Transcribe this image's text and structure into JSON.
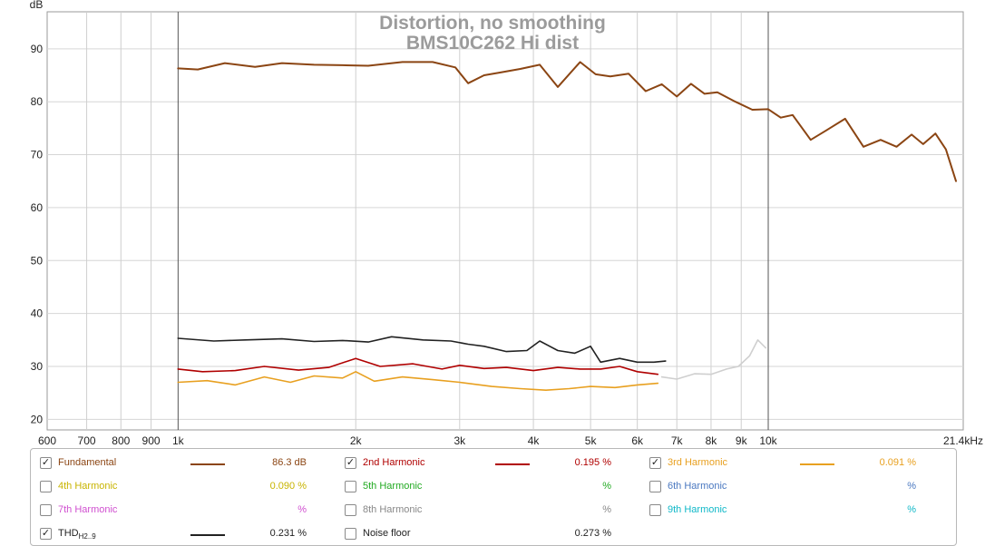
{
  "chart_data": {
    "type": "line",
    "title": "Distortion, no smoothing",
    "subtitle": "BMS10C262 Hi dist",
    "ylabel": "dB",
    "xscale": "log",
    "xlim": [
      600,
      21400
    ],
    "ylim": [
      18,
      97
    ],
    "x_ticks": [
      {
        "v": 600,
        "label": "600"
      },
      {
        "v": 700,
        "label": "700"
      },
      {
        "v": 800,
        "label": "800"
      },
      {
        "v": 900,
        "label": "900"
      },
      {
        "v": 1000,
        "label": "1k"
      },
      {
        "v": 2000,
        "label": "2k"
      },
      {
        "v": 3000,
        "label": "3k"
      },
      {
        "v": 4000,
        "label": "4k"
      },
      {
        "v": 5000,
        "label": "5k"
      },
      {
        "v": 6000,
        "label": "6k"
      },
      {
        "v": 7000,
        "label": "7k"
      },
      {
        "v": 8000,
        "label": "8k"
      },
      {
        "v": 9000,
        "label": "9k"
      },
      {
        "v": 10000,
        "label": "10k"
      },
      {
        "v": 21400,
        "label": "21.4kHz"
      }
    ],
    "y_ticks": [
      20,
      30,
      40,
      50,
      60,
      70,
      80,
      90
    ],
    "grid": true,
    "series": [
      {
        "name": "Fundamental",
        "color": "#8b4513",
        "x": [
          1000,
          1080,
          1200,
          1350,
          1500,
          1700,
          1900,
          2100,
          2400,
          2700,
          2950,
          3100,
          3300,
          3500,
          3800,
          4100,
          4400,
          4800,
          5100,
          5400,
          5800,
          6200,
          6600,
          7000,
          7400,
          7800,
          8200,
          8800,
          9400,
          10000,
          10500,
          11000,
          11800,
          12500,
          13500,
          14500,
          15500,
          16500,
          17500,
          18300,
          19200,
          20000,
          20800
        ],
        "y": [
          86.3,
          86.1,
          87.3,
          86.6,
          87.3,
          87.0,
          86.9,
          86.8,
          87.5,
          87.5,
          86.5,
          83.5,
          85.0,
          85.5,
          86.2,
          87.0,
          82.8,
          87.5,
          85.2,
          84.8,
          85.3,
          82.0,
          83.3,
          81.0,
          83.4,
          81.5,
          81.8,
          80.0,
          78.5,
          78.6,
          77.0,
          77.5,
          72.8,
          74.5,
          76.8,
          71.5,
          72.8,
          71.5,
          73.8,
          72.0,
          74.0,
          71.0,
          65.0
        ]
      },
      {
        "name": "THD H2..9",
        "color": "#222222",
        "x": [
          1000,
          1150,
          1300,
          1500,
          1700,
          1900,
          2100,
          2300,
          2600,
          2900,
          3100,
          3300,
          3600,
          3900,
          4100,
          4400,
          4700,
          5000,
          5200,
          5600,
          6000,
          6400,
          6700
        ],
        "y": [
          35.3,
          34.8,
          35.0,
          35.2,
          34.7,
          34.9,
          34.6,
          35.6,
          35.0,
          34.8,
          34.2,
          33.8,
          32.8,
          33.0,
          34.8,
          33.0,
          32.5,
          33.8,
          30.8,
          31.5,
          30.8,
          30.8,
          31.0
        ]
      },
      {
        "name": "2nd Harmonic",
        "color": "#b00000",
        "x": [
          1000,
          1100,
          1250,
          1400,
          1600,
          1800,
          2000,
          2200,
          2500,
          2800,
          3000,
          3300,
          3600,
          4000,
          4400,
          4800,
          5200,
          5600,
          6000,
          6500
        ],
        "y": [
          29.5,
          29.0,
          29.2,
          30.0,
          29.3,
          29.8,
          31.5,
          30.0,
          30.5,
          29.5,
          30.2,
          29.6,
          29.8,
          29.2,
          29.8,
          29.5,
          29.5,
          30.0,
          29.0,
          28.5
        ]
      },
      {
        "name": "3rd Harmonic",
        "color": "#e8a020",
        "x": [
          1000,
          1120,
          1250,
          1400,
          1550,
          1700,
          1900,
          2000,
          2150,
          2400,
          2700,
          3000,
          3400,
          3800,
          4200,
          4600,
          5000,
          5500,
          6000,
          6500
        ],
        "y": [
          27.0,
          27.3,
          26.5,
          28.0,
          27.0,
          28.2,
          27.8,
          29.0,
          27.2,
          28.0,
          27.5,
          27.0,
          26.2,
          25.8,
          25.5,
          25.8,
          26.2,
          26.0,
          26.5,
          26.8
        ]
      },
      {
        "name": "Noise floor",
        "color": "#cfcfcf",
        "x": [
          6600,
          7000,
          7500,
          8000,
          8500,
          8900,
          9300,
          9600,
          9900
        ],
        "y": [
          28.0,
          27.6,
          28.6,
          28.5,
          29.5,
          30.0,
          32.0,
          35.0,
          33.5
        ]
      }
    ]
  },
  "legend": {
    "rows": [
      [
        {
          "label": "Fundamental",
          "checked": true,
          "color": "#8b4513",
          "value": "86.3 dB",
          "swatch": true
        },
        {
          "label": "2nd Harmonic",
          "checked": true,
          "color": "#b00000",
          "value": "0.195 %",
          "swatch": true
        },
        {
          "label": "3rd Harmonic",
          "checked": true,
          "color": "#e8a020",
          "value": "0.091 %",
          "swatch": true
        }
      ],
      [
        {
          "label": "4th Harmonic",
          "checked": false,
          "color": "#c8b400",
          "value": "0.090 %",
          "swatch": false
        },
        {
          "label": "5th Harmonic",
          "checked": false,
          "color": "#22aa22",
          "value": "%",
          "swatch": false
        },
        {
          "label": "6th Harmonic",
          "checked": false,
          "color": "#4a78c0",
          "value": "%",
          "swatch": false
        }
      ],
      [
        {
          "label": "7th Harmonic",
          "checked": false,
          "color": "#d050d0",
          "value": "%",
          "swatch": false
        },
        {
          "label": "8th Harmonic",
          "checked": false,
          "color": "#888888",
          "value": "%",
          "swatch": false
        },
        {
          "label": "9th Harmonic",
          "checked": false,
          "color": "#10b8c8",
          "value": "%",
          "swatch": false
        }
      ],
      [
        {
          "label": "THD",
          "sub": "H2..9",
          "checked": true,
          "color": "#222222",
          "value": "0.231 %",
          "swatch": true
        },
        {
          "label": "Noise floor",
          "checked": false,
          "color": "#8b4513",
          "value": "0.273 %",
          "swatch": false
        }
      ]
    ]
  }
}
